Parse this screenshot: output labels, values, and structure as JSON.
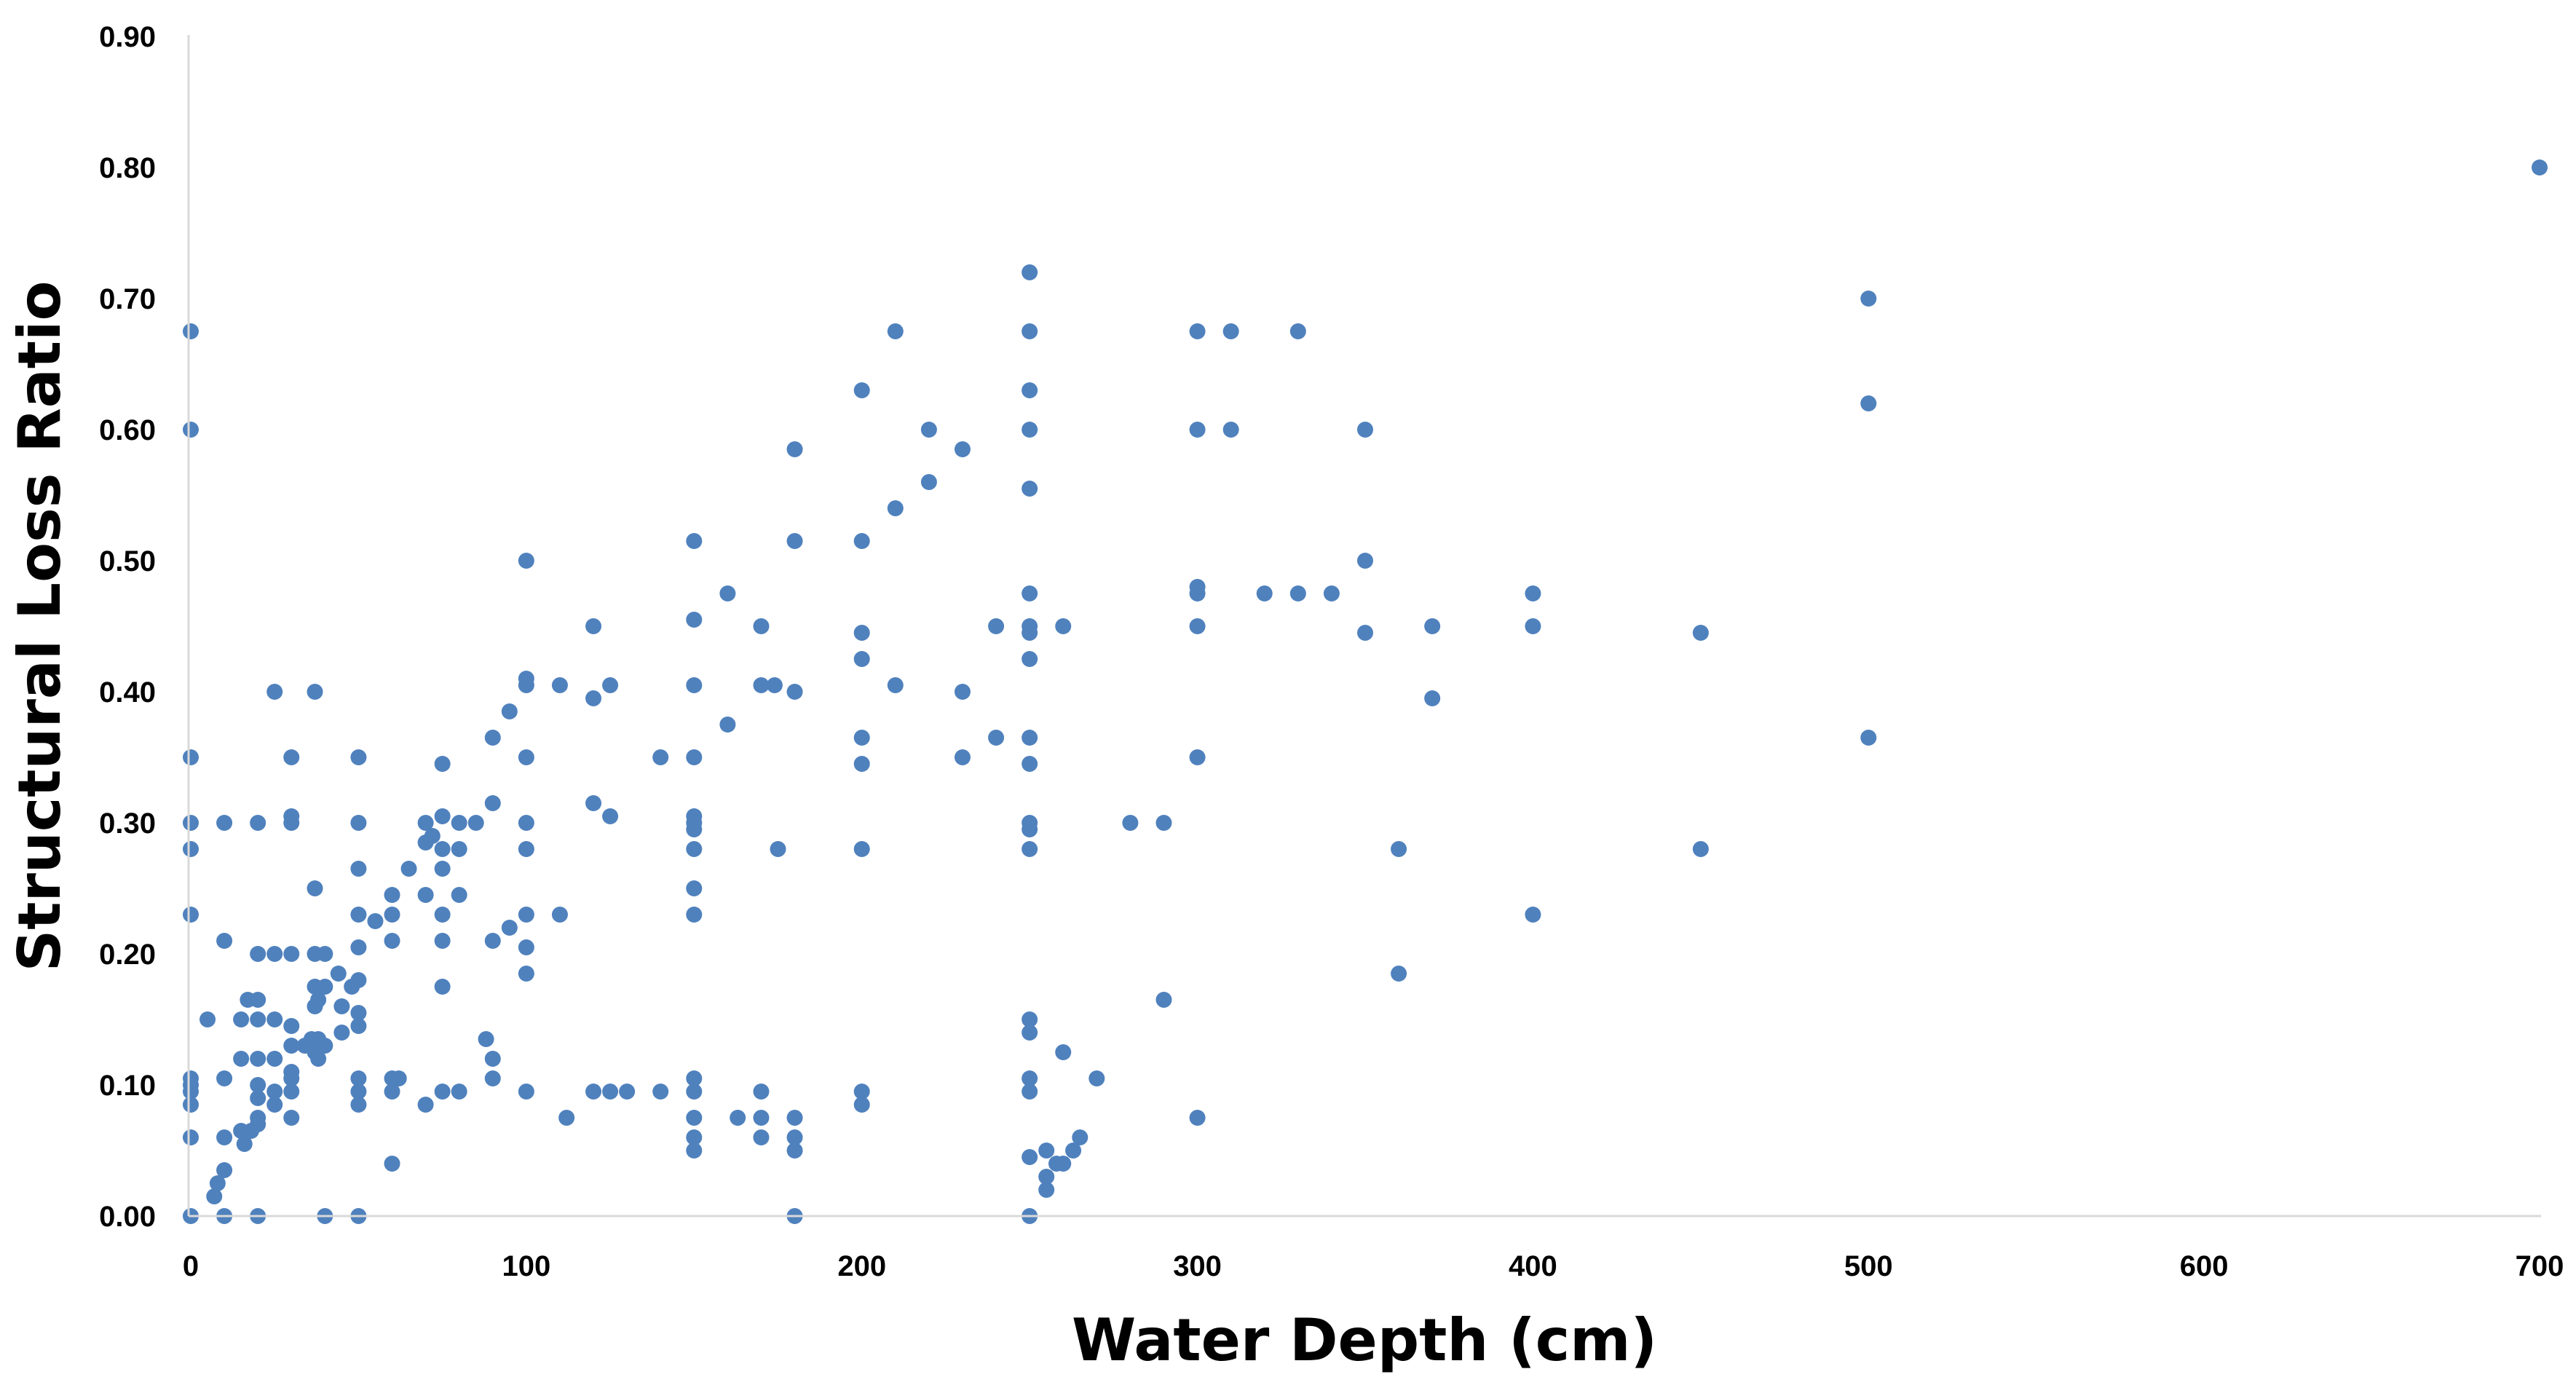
{
  "chart_data": {
    "type": "scatter",
    "xlabel": "Water Depth (cm)",
    "ylabel": "Structural Loss Ratio",
    "xlim": [
      0,
      700
    ],
    "ylim": [
      0,
      0.9
    ],
    "x_ticks": [
      "0",
      "100",
      "200",
      "300",
      "400",
      "500",
      "600",
      "700"
    ],
    "y_ticks": [
      "0.00",
      "0.10",
      "0.20",
      "0.30",
      "0.40",
      "0.50",
      "0.60",
      "0.70",
      "0.80",
      "0.90"
    ],
    "grid": false,
    "legend": "none",
    "marker_color": "#4f81bd",
    "series": [
      {
        "points": [
          [
            0,
            0.675
          ],
          [
            0,
            0.6
          ],
          [
            0,
            0.35
          ],
          [
            0,
            0.3
          ],
          [
            0,
            0.28
          ],
          [
            0,
            0.23
          ],
          [
            0,
            0.105
          ],
          [
            0,
            0.1
          ],
          [
            0,
            0.095
          ],
          [
            0,
            0.085
          ],
          [
            0,
            0.06
          ],
          [
            0,
            0
          ],
          [
            5,
            0.15
          ],
          [
            7,
            0.015
          ],
          [
            8,
            0.025
          ],
          [
            10,
            0.3
          ],
          [
            10,
            0.21
          ],
          [
            10,
            0.105
          ],
          [
            10,
            0.06
          ],
          [
            10,
            0.035
          ],
          [
            10,
            0
          ],
          [
            15,
            0.15
          ],
          [
            15,
            0.12
          ],
          [
            15,
            0.065
          ],
          [
            16,
            0.055
          ],
          [
            17,
            0.165
          ],
          [
            18,
            0.065
          ],
          [
            20,
            0.3
          ],
          [
            20,
            0.2
          ],
          [
            20,
            0.165
          ],
          [
            20,
            0.15
          ],
          [
            20,
            0.12
          ],
          [
            20,
            0.1
          ],
          [
            20,
            0.09
          ],
          [
            20,
            0.075
          ],
          [
            20,
            0.07
          ],
          [
            20,
            0
          ],
          [
            25,
            0.4
          ],
          [
            25,
            0.2
          ],
          [
            25,
            0.15
          ],
          [
            25,
            0.12
          ],
          [
            25,
            0.095
          ],
          [
            25,
            0.085
          ],
          [
            30,
            0.35
          ],
          [
            30,
            0.305
          ],
          [
            30,
            0.3
          ],
          [
            30,
            0.2
          ],
          [
            30,
            0.145
          ],
          [
            30,
            0.13
          ],
          [
            30,
            0.11
          ],
          [
            30,
            0.105
          ],
          [
            30,
            0.095
          ],
          [
            30,
            0.075
          ],
          [
            34,
            0.13
          ],
          [
            36,
            0.135
          ],
          [
            37,
            0.125
          ],
          [
            37,
            0.4
          ],
          [
            37,
            0.25
          ],
          [
            37,
            0.2
          ],
          [
            37,
            0.175
          ],
          [
            37,
            0.16
          ],
          [
            38,
            0.165
          ],
          [
            38,
            0.135
          ],
          [
            38,
            0.12
          ],
          [
            40,
            0.2
          ],
          [
            40,
            0.175
          ],
          [
            40,
            0.13
          ],
          [
            40,
            0
          ],
          [
            44,
            0.185
          ],
          [
            45,
            0.16
          ],
          [
            45,
            0.14
          ],
          [
            48,
            0.175
          ],
          [
            50,
            0.35
          ],
          [
            50,
            0.3
          ],
          [
            50,
            0.265
          ],
          [
            50,
            0.23
          ],
          [
            50,
            0.205
          ],
          [
            50,
            0.18
          ],
          [
            50,
            0.155
          ],
          [
            50,
            0.145
          ],
          [
            50,
            0.105
          ],
          [
            50,
            0.095
          ],
          [
            50,
            0.085
          ],
          [
            50,
            0
          ],
          [
            55,
            0.225
          ],
          [
            60,
            0.245
          ],
          [
            60,
            0.23
          ],
          [
            60,
            0.21
          ],
          [
            60,
            0.105
          ],
          [
            60,
            0.095
          ],
          [
            60,
            0.04
          ],
          [
            62,
            0.105
          ],
          [
            65,
            0.265
          ],
          [
            70,
            0.3
          ],
          [
            70,
            0.285
          ],
          [
            70,
            0.245
          ],
          [
            70,
            0.085
          ],
          [
            72,
            0.29
          ],
          [
            75,
            0.345
          ],
          [
            75,
            0.305
          ],
          [
            75,
            0.28
          ],
          [
            75,
            0.265
          ],
          [
            75,
            0.23
          ],
          [
            75,
            0.21
          ],
          [
            75,
            0.175
          ],
          [
            75,
            0.095
          ],
          [
            80,
            0.3
          ],
          [
            80,
            0.28
          ],
          [
            80,
            0.245
          ],
          [
            80,
            0.095
          ],
          [
            85,
            0.3
          ],
          [
            88,
            0.135
          ],
          [
            90,
            0.365
          ],
          [
            90,
            0.315
          ],
          [
            90,
            0.21
          ],
          [
            90,
            0.12
          ],
          [
            90,
            0.105
          ],
          [
            95,
            0.385
          ],
          [
            95,
            0.22
          ],
          [
            100,
            0.5
          ],
          [
            100,
            0.41
          ],
          [
            100,
            0.405
          ],
          [
            100,
            0.35
          ],
          [
            100,
            0.3
          ],
          [
            100,
            0.28
          ],
          [
            100,
            0.23
          ],
          [
            100,
            0.205
          ],
          [
            100,
            0.185
          ],
          [
            100,
            0.095
          ],
          [
            110,
            0.405
          ],
          [
            110,
            0.23
          ],
          [
            112,
            0.075
          ],
          [
            120,
            0.45
          ],
          [
            120,
            0.395
          ],
          [
            120,
            0.315
          ],
          [
            120,
            0.095
          ],
          [
            125,
            0.405
          ],
          [
            125,
            0.305
          ],
          [
            125,
            0.095
          ],
          [
            130,
            0.095
          ],
          [
            140,
            0.35
          ],
          [
            140,
            0.095
          ],
          [
            150,
            0.515
          ],
          [
            150,
            0.455
          ],
          [
            150,
            0.405
          ],
          [
            150,
            0.35
          ],
          [
            150,
            0.305
          ],
          [
            150,
            0.3
          ],
          [
            150,
            0.295
          ],
          [
            150,
            0.28
          ],
          [
            150,
            0.25
          ],
          [
            150,
            0.23
          ],
          [
            150,
            0.105
          ],
          [
            150,
            0.095
          ],
          [
            150,
            0.075
          ],
          [
            150,
            0.06
          ],
          [
            150,
            0.05
          ],
          [
            160,
            0.475
          ],
          [
            160,
            0.375
          ],
          [
            163,
            0.075
          ],
          [
            170,
            0.45
          ],
          [
            170,
            0.405
          ],
          [
            170,
            0.095
          ],
          [
            170,
            0.075
          ],
          [
            170,
            0.06
          ],
          [
            174,
            0.405
          ],
          [
            175,
            0.28
          ],
          [
            180,
            0.585
          ],
          [
            180,
            0.515
          ],
          [
            180,
            0.4
          ],
          [
            180,
            0.075
          ],
          [
            180,
            0.06
          ],
          [
            180,
            0.05
          ],
          [
            180,
            0
          ],
          [
            200,
            0.63
          ],
          [
            200,
            0.515
          ],
          [
            200,
            0.445
          ],
          [
            200,
            0.425
          ],
          [
            200,
            0.365
          ],
          [
            200,
            0.345
          ],
          [
            200,
            0.28
          ],
          [
            200,
            0.095
          ],
          [
            200,
            0.085
          ],
          [
            210,
            0.675
          ],
          [
            210,
            0.54
          ],
          [
            210,
            0.405
          ],
          [
            220,
            0.6
          ],
          [
            220,
            0.56
          ],
          [
            230,
            0.585
          ],
          [
            230,
            0.4
          ],
          [
            230,
            0.35
          ],
          [
            240,
            0.45
          ],
          [
            240,
            0.365
          ],
          [
            250,
            0.72
          ],
          [
            250,
            0.675
          ],
          [
            250,
            0.63
          ],
          [
            250,
            0.6
          ],
          [
            250,
            0.555
          ],
          [
            250,
            0.475
          ],
          [
            250,
            0.45
          ],
          [
            250,
            0.445
          ],
          [
            250,
            0.425
          ],
          [
            250,
            0.365
          ],
          [
            250,
            0.345
          ],
          [
            250,
            0.3
          ],
          [
            250,
            0.295
          ],
          [
            250,
            0.28
          ],
          [
            250,
            0.15
          ],
          [
            250,
            0.14
          ],
          [
            250,
            0.105
          ],
          [
            250,
            0.095
          ],
          [
            250,
            0.045
          ],
          [
            250,
            0
          ],
          [
            255,
            0.05
          ],
          [
            255,
            0.03
          ],
          [
            255,
            0.02
          ],
          [
            258,
            0.04
          ],
          [
            260,
            0.45
          ],
          [
            260,
            0.125
          ],
          [
            260,
            0.04
          ],
          [
            263,
            0.05
          ],
          [
            265,
            0.06
          ],
          [
            270,
            0.105
          ],
          [
            280,
            0.3
          ],
          [
            290,
            0.3
          ],
          [
            290,
            0.165
          ],
          [
            300,
            0.675
          ],
          [
            300,
            0.6
          ],
          [
            300,
            0.48
          ],
          [
            300,
            0.475
          ],
          [
            300,
            0.45
          ],
          [
            300,
            0.35
          ],
          [
            300,
            0.075
          ],
          [
            310,
            0.675
          ],
          [
            310,
            0.6
          ],
          [
            320,
            0.475
          ],
          [
            330,
            0.675
          ],
          [
            330,
            0.475
          ],
          [
            340,
            0.475
          ],
          [
            350,
            0.6
          ],
          [
            350,
            0.5
          ],
          [
            350,
            0.445
          ],
          [
            360,
            0.28
          ],
          [
            360,
            0.185
          ],
          [
            370,
            0.45
          ],
          [
            370,
            0.395
          ],
          [
            400,
            0.475
          ],
          [
            400,
            0.45
          ],
          [
            400,
            0.23
          ],
          [
            450,
            0.445
          ],
          [
            450,
            0.28
          ],
          [
            500,
            0.7
          ],
          [
            500,
            0.62
          ],
          [
            500,
            0.365
          ],
          [
            700,
            0.8
          ]
        ]
      }
    ]
  }
}
